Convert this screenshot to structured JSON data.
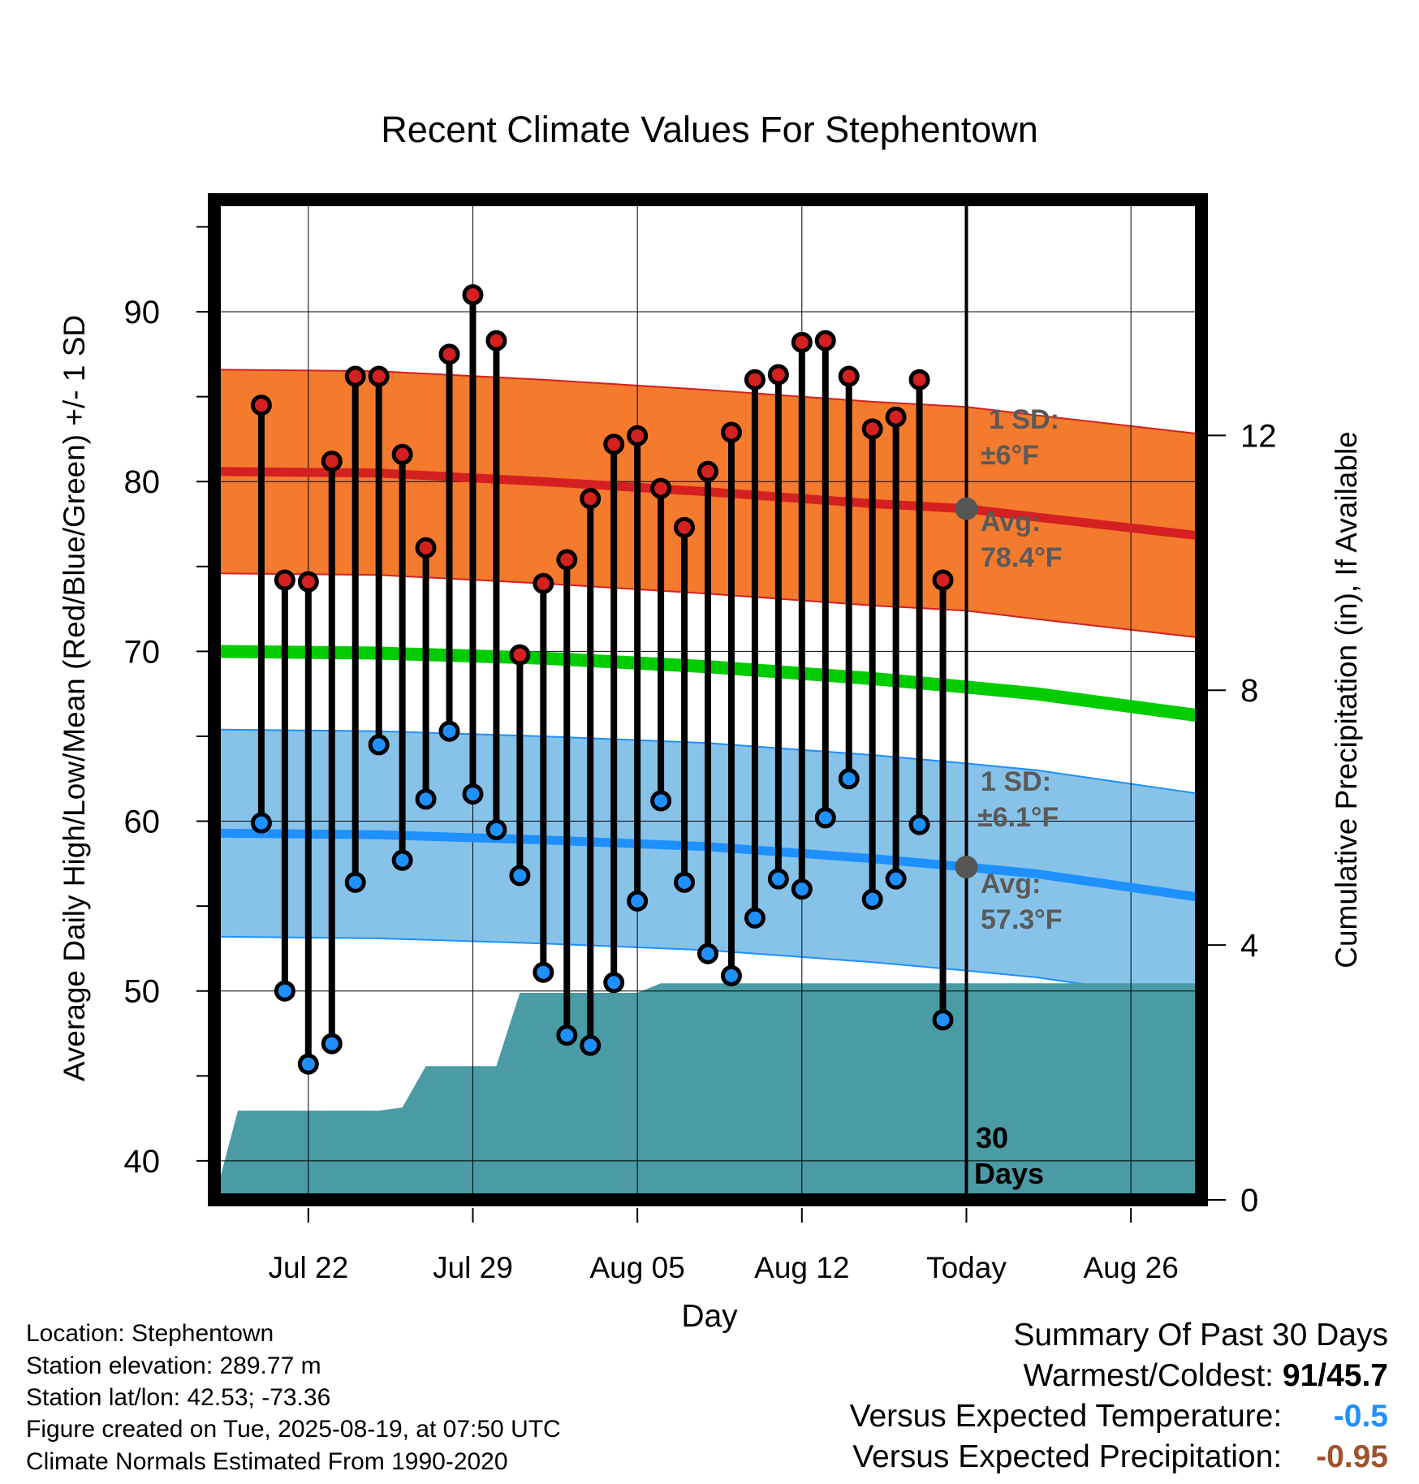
{
  "chart_data": {
    "type": "line",
    "title": "Recent Climate Values For Stephentown",
    "xlabel": "Day",
    "ylabel": "Average Daily High/Low/Mean (Red/Blue/Green) +/- 1 SD",
    "y2label": "Cumulative Precipitation (in), If Available",
    "ylim": [
      37.7,
      96.6
    ],
    "y2lim": [
      0,
      15.7
    ],
    "xlim": [
      "Jul 18",
      "Aug 29"
    ],
    "yticks": [
      40,
      50,
      60,
      70,
      80,
      90
    ],
    "y2ticks": [
      0,
      4,
      8,
      12
    ],
    "xticks": [
      {
        "date": "Jul 22",
        "label": "Jul 22"
      },
      {
        "date": "Jul 29",
        "label": "Jul 29"
      },
      {
        "date": "Aug 05",
        "label": "Aug 05"
      },
      {
        "date": "Aug 12",
        "label": "Aug 12"
      },
      {
        "date": "Aug 19",
        "label": "Today"
      },
      {
        "date": "Aug 26",
        "label": "Aug 26"
      }
    ],
    "grid": true,
    "today": "Aug 19",
    "dates": [
      "Jul 20",
      "Jul 21",
      "Jul 22",
      "Jul 23",
      "Jul 24",
      "Jul 25",
      "Jul 26",
      "Jul 27",
      "Jul 28",
      "Jul 29",
      "Jul 30",
      "Jul 31",
      "Aug 01",
      "Aug 02",
      "Aug 03",
      "Aug 04",
      "Aug 05",
      "Aug 06",
      "Aug 07",
      "Aug 08",
      "Aug 09",
      "Aug 10",
      "Aug 11",
      "Aug 12",
      "Aug 13",
      "Aug 14",
      "Aug 15",
      "Aug 16",
      "Aug 17",
      "Aug 18"
    ],
    "series": [
      {
        "name": "High",
        "color": "#d42020",
        "values": [
          84.5,
          74.2,
          74.1,
          81.2,
          86.2,
          86.2,
          81.6,
          76.1,
          87.5,
          91.0,
          88.3,
          69.8,
          74.0,
          75.4,
          79.0,
          82.2,
          82.7,
          79.6,
          77.3,
          80.6,
          82.9,
          86.0,
          86.3,
          88.2,
          88.3,
          86.2,
          83.1,
          83.8,
          86.0,
          74.2
        ]
      },
      {
        "name": "Low",
        "color": "#1e90ff",
        "values": [
          59.9,
          50.0,
          45.7,
          46.9,
          56.4,
          64.5,
          57.7,
          61.3,
          65.3,
          61.6,
          59.5,
          56.8,
          51.1,
          47.4,
          46.8,
          50.5,
          55.3,
          61.2,
          56.4,
          52.2,
          50.9,
          54.3,
          56.6,
          56.0,
          60.2,
          62.5,
          55.4,
          56.6,
          59.8,
          48.3
        ]
      }
    ],
    "normals": {
      "dates": [
        "Jul 18",
        "Jul 25",
        "Aug 01",
        "Aug 08",
        "Aug 15",
        "Aug 19",
        "Aug 22",
        "Aug 29"
      ],
      "high_avg": [
        80.6,
        80.5,
        80.0,
        79.4,
        78.7,
        78.4,
        77.9,
        76.8
      ],
      "high_sd": 6,
      "low_avg": [
        59.3,
        59.2,
        58.9,
        58.5,
        57.8,
        57.3,
        56.9,
        55.5
      ],
      "low_sd": 6.1,
      "mean_avg": [
        70.0,
        69.9,
        69.6,
        69.1,
        68.4,
        67.9,
        67.5,
        66.2
      ]
    },
    "precip_cumulative": {
      "dates": [
        "Jul 18",
        "Jul 19",
        "Jul 25",
        "Jul 26",
        "Jul 27",
        "Jul 28",
        "Jul 30",
        "Jul 31",
        "Aug 05",
        "Aug 06",
        "Aug 12",
        "Aug 29"
      ],
      "values": [
        0,
        1.4,
        1.4,
        1.45,
        2.1,
        2.1,
        2.1,
        3.25,
        3.25,
        3.4,
        3.4,
        3.4
      ]
    },
    "annotations": {
      "high_sd_label": "1 SD:",
      "high_sd_value": "±6°F",
      "high_avg_label": "Avg:",
      "high_avg_value": "78.4°F",
      "low_sd_label": "1 SD:",
      "low_sd_value": "±6.1°F",
      "low_avg_label": "Avg:",
      "low_avg_value": "57.3°F",
      "days_count": "30",
      "days_word": "Days"
    },
    "colors": {
      "high_band": "#f47a2e",
      "high_line": "#d42020",
      "low_band": "#87c2e8",
      "low_line": "#1e90ff",
      "mean_line": "#00cc00",
      "precip": "#4a9ba5",
      "avg_dot": "#555555",
      "annot": "#5a5a5a"
    }
  },
  "station": {
    "location": "Location: Stephentown",
    "elevation": "Station elevation: 289.77 m",
    "latlon": "Station lat/lon: 42.53; -73.36",
    "created": "Figure created on Tue, 2025-08-19, at 07:50 UTC",
    "normals": "Climate Normals Estimated From 1990-2020"
  },
  "summary": {
    "title": "Summary Of Past 30 Days",
    "warmest_label": "Warmest/Coldest:",
    "warmest_value": "91/45.7",
    "temp_label": "Versus Expected Temperature:",
    "temp_value": "-0.5",
    "temp_color": "#1e90ff",
    "precip_label": "Versus Expected Precipitation:",
    "precip_value": "-0.95",
    "precip_color": "#a0522d"
  }
}
